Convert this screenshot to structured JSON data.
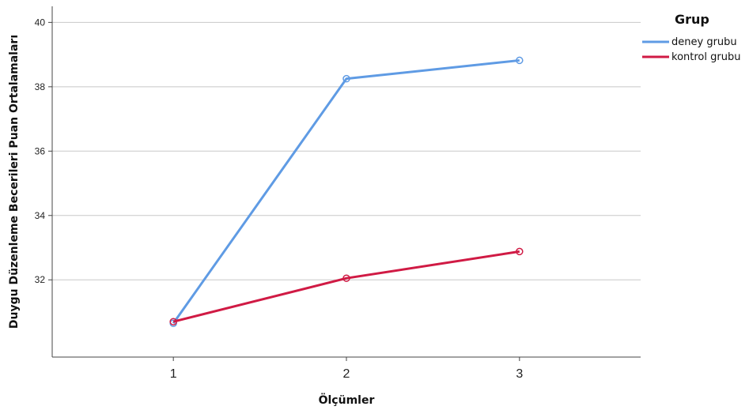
{
  "chart_data": {
    "type": "line",
    "xlabel": "Ölçümler",
    "ylabel": "Duygu Düzenleme Becerileri Puan Ortalamaları",
    "x": [
      "1",
      "2",
      "3"
    ],
    "xlim": [
      0.3,
      3.7
    ],
    "ylim": [
      29.6,
      40.5
    ],
    "yticks": [
      32,
      34,
      36,
      38,
      40
    ],
    "ytick_labels": [
      "32",
      "34",
      "36",
      "38",
      "40"
    ],
    "grid": true,
    "legend": {
      "title": "Grup",
      "position": "top-right"
    },
    "series": [
      {
        "name": "deney grubu",
        "values": [
          30.65,
          38.25,
          38.82
        ],
        "color": "#5f9be4"
      },
      {
        "name": "kontrol grubu",
        "values": [
          30.7,
          32.05,
          32.88
        ],
        "color": "#d01a44"
      }
    ]
  }
}
